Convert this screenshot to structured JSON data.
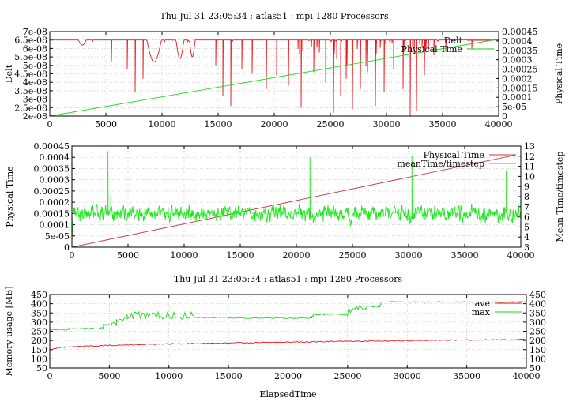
{
  "chart_data": [
    {
      "type": "line",
      "title": "Thu Jul 31 23:05:34 : atlas51 : mpi 1280 Processors",
      "xlabel": "",
      "ylabel": "Delt",
      "y2label": "Physical Time",
      "xlim": [
        0,
        40000
      ],
      "ylim": [
        2e-08,
        7e-08
      ],
      "y2lim": [
        0,
        0.00045
      ],
      "x_ticks": [
        "0",
        "5000",
        "10000",
        "15000",
        "20000",
        "25000",
        "30000",
        "35000",
        "40000"
      ],
      "y_ticks": [
        "2e-08",
        "2.5e-08",
        "3e-08",
        "3.5e-08",
        "4e-08",
        "4.5e-08",
        "5e-08",
        "5.5e-08",
        "6e-08",
        "6.5e-08",
        "7e-08"
      ],
      "y2_ticks": [
        "0",
        "5e-05",
        "0.0001",
        "0.00015",
        "0.0002",
        "0.00025",
        "0.0003",
        "0.00035",
        "0.0004",
        "0.00045"
      ],
      "legend_position": "top-right",
      "grid": true,
      "series": [
        {
          "name": "Delt",
          "color": "#e8161b",
          "axis": "left",
          "baseline": 6.5e-08,
          "features": [
            {
              "x": 2900,
              "y": 6.2e-08,
              "w": 700
            },
            {
              "x": 9300,
              "y": 5.2e-08,
              "w": 1300
            },
            {
              "x": 11600,
              "y": 5.4e-08,
              "w": 700
            },
            {
              "x": 12700,
              "y": 5.5e-08,
              "w": 500
            }
          ],
          "spikes": [
            {
              "x": 5500,
              "y": 5.2e-08
            },
            {
              "x": 6900,
              "y": 4.8e-08
            },
            {
              "x": 7600,
              "y": 3.4e-08
            },
            {
              "x": 8300,
              "y": 4.2e-08
            },
            {
              "x": 14800,
              "y": 5e-08
            },
            {
              "x": 15400,
              "y": 3.2e-08
            },
            {
              "x": 16100,
              "y": 2.6e-08
            },
            {
              "x": 17100,
              "y": 4.8e-08
            },
            {
              "x": 18000,
              "y": 4.5e-08
            },
            {
              "x": 19300,
              "y": 3.6e-08
            },
            {
              "x": 20200,
              "y": 4.4e-08
            },
            {
              "x": 21300,
              "y": 3.8e-08
            },
            {
              "x": 22400,
              "y": 2.5e-08
            },
            {
              "x": 23500,
              "y": 4.6e-08
            },
            {
              "x": 24600,
              "y": 4e-08
            },
            {
              "x": 25300,
              "y": 2.2e-08
            },
            {
              "x": 25900,
              "y": 3.2e-08
            },
            {
              "x": 26400,
              "y": 4.2e-08
            },
            {
              "x": 27000,
              "y": 2.4e-08
            },
            {
              "x": 27700,
              "y": 3.6e-08
            },
            {
              "x": 28300,
              "y": 4.6e-08
            },
            {
              "x": 29000,
              "y": 2.6e-08
            },
            {
              "x": 29800,
              "y": 3.4e-08
            },
            {
              "x": 30600,
              "y": 4.8e-08
            },
            {
              "x": 31500,
              "y": 3.6e-08
            },
            {
              "x": 32100,
              "y": 2e-08
            },
            {
              "x": 32700,
              "y": 2.3e-08
            },
            {
              "x": 33400,
              "y": 4.4e-08
            },
            {
              "x": 34200,
              "y": 5.6e-08
            },
            {
              "x": 35300,
              "y": 5.8e-08
            },
            {
              "x": 37600,
              "y": 6e-08
            }
          ]
        },
        {
          "name": "Physical Time",
          "color": "#1ed81e",
          "axis": "right",
          "x": [
            0,
            40000
          ],
          "y": [
            0,
            0.00041
          ]
        }
      ]
    },
    {
      "type": "line",
      "title": "",
      "xlabel": "",
      "ylabel": "Physical Time",
      "y2label": "Mean Time/timestep",
      "xlim": [
        0,
        40000
      ],
      "ylim": [
        0,
        0.00045
      ],
      "y2lim": [
        3,
        13
      ],
      "x_ticks": [
        "0",
        "5000",
        "10000",
        "15000",
        "20000",
        "25000",
        "30000",
        "35000",
        "40000"
      ],
      "y_ticks": [
        "0",
        "5e-05",
        "0.0001",
        "0.00015",
        "0.0002",
        "0.00025",
        "0.0003",
        "0.00035",
        "0.0004",
        "0.00045"
      ],
      "y2_ticks": [
        "3",
        "4",
        "5",
        "6",
        "7",
        "8",
        "9",
        "10",
        "11",
        "12",
        "13"
      ],
      "legend_position": "top-right",
      "grid": true,
      "series": [
        {
          "name": "Physical Time",
          "color": "#c8363a",
          "axis": "left",
          "x": [
            0,
            39500
          ],
          "y": [
            0,
            0.00041
          ]
        },
        {
          "name": "meanTime/timestep",
          "color": "#1ee81e",
          "axis": "right",
          "baseline": 6.3,
          "noise": 0.9,
          "spikes": [
            {
              "x": 3200,
              "y": 12.5
            },
            {
              "x": 3450,
              "y": 8.2
            },
            {
              "x": 21200,
              "y": 11.9
            },
            {
              "x": 30300,
              "y": 12.0
            },
            {
              "x": 38700,
              "y": 10.6
            }
          ]
        }
      ]
    },
    {
      "type": "line",
      "title": "Thu Jul 31 23:05:34 : atlas51 : mpi 1280 Processors",
      "xlabel": "ElapsedTime",
      "ylabel": "Memory usage [MB]",
      "y2label": "",
      "xlim": [
        0,
        40000
      ],
      "ylim": [
        50,
        450
      ],
      "y2lim": [
        50,
        450
      ],
      "x_ticks": [
        "0",
        "5000",
        "10000",
        "15000",
        "20000",
        "25000",
        "30000",
        "35000",
        "40000"
      ],
      "y_ticks": [
        "50",
        "100",
        "150",
        "200",
        "250",
        "300",
        "350",
        "400",
        "450"
      ],
      "y2_ticks": [
        "50",
        "100",
        "150",
        "200",
        "250",
        "300",
        "350",
        "400",
        "450"
      ],
      "legend_position": "top-right",
      "grid": true,
      "series": [
        {
          "name": "ave",
          "color": "#e8161b",
          "x": [
            0,
            600,
            2000,
            5000,
            10000,
            15000,
            20000,
            25000,
            30000,
            35000,
            40000
          ],
          "y": [
            145,
            160,
            166,
            173,
            181,
            186,
            191,
            195,
            199,
            203,
            205
          ]
        },
        {
          "name": "max",
          "color": "#1ed81e",
          "x": [
            0,
            1500,
            1600,
            4300,
            4500,
            5200,
            5600,
            6500,
            7000,
            7500,
            12000,
            12100,
            15000,
            22000,
            22100,
            25000,
            25100,
            26500,
            26600,
            27700,
            27800,
            40000
          ],
          "y": [
            258,
            258,
            265,
            268,
            285,
            295,
            320,
            330,
            340,
            335,
            335,
            325,
            322,
            330,
            342,
            355,
            370,
            372,
            385,
            392,
            410,
            410
          ]
        }
      ]
    }
  ]
}
